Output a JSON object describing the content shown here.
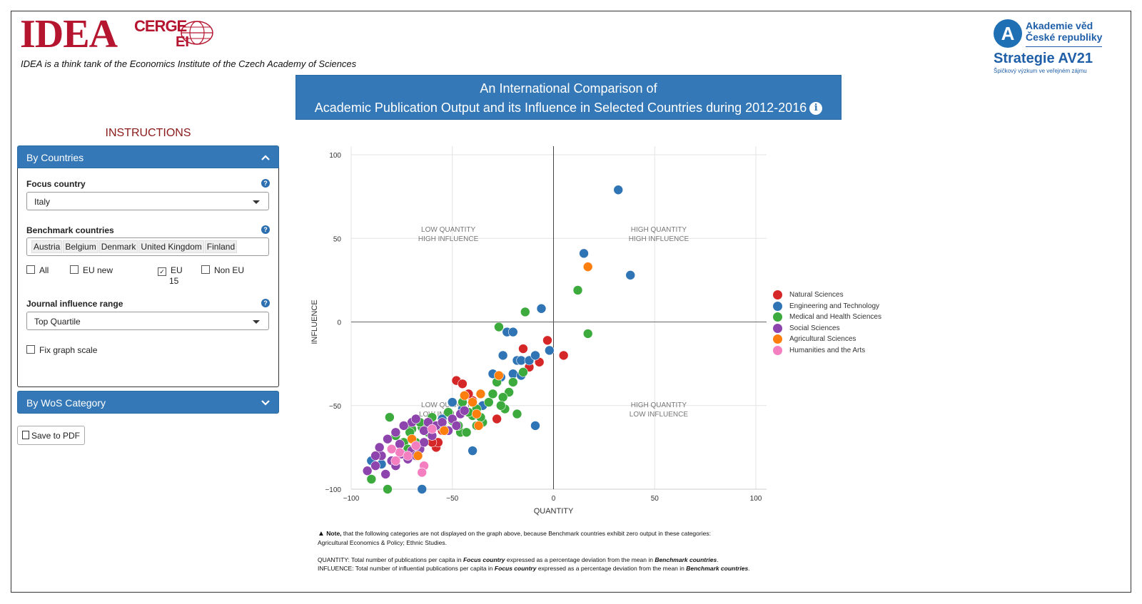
{
  "header": {
    "logo_idea": "IDEA",
    "logo_cerge": "CERGE",
    "logo_ei": "EI",
    "tagline": "IDEA is a think tank of the Economics Institute of the Czech Academy of Sciences",
    "av_line1": "Akademie věd",
    "av_line2": "České republiky",
    "av_strategy": "Strategie AV21",
    "av_sub": "Špičkový výzkum ve veřejném zájmu",
    "title_line1": "An International Comparison of",
    "title_line2": "Academic Publication Output and its Influence in Selected Countries during 2012-2016"
  },
  "sidebar": {
    "instructions_title": "INSTRUCTIONS",
    "panel1_title": "By Countries",
    "focus_label": "Focus country",
    "focus_value": "Italy",
    "benchmark_label": "Benchmark countries",
    "benchmark_chips": [
      "Austria",
      "Belgium",
      "Denmark",
      "United Kingdom",
      "Finland"
    ],
    "checkbox_all": "All",
    "checkbox_eu_new": "EU new",
    "checkbox_eu15_a": "EU",
    "checkbox_eu15_b": "15",
    "checkbox_non_eu": "Non EU",
    "journal_label": "Journal influence range",
    "journal_value": "Top Quartile",
    "fix_scale": "Fix graph scale",
    "panel2_title": "By WoS Category",
    "save_button": "Save to PDF"
  },
  "colors": {
    "natural": "#d62728",
    "engineering": "#2f74b5",
    "medical": "#3caa3c",
    "social": "#8e44ad",
    "agricultural": "#ff7f0e",
    "humanities": "#f47fc0",
    "header_blue": "#3478b7"
  },
  "chart_data": {
    "type": "scatter",
    "xlabel": "QUANTITY",
    "ylabel": "INFLUENCE",
    "xlim": [
      -100,
      100
    ],
    "ylim": [
      -100,
      100
    ],
    "xticks": [
      -100,
      -50,
      0,
      50,
      100
    ],
    "yticks": [
      -100,
      -50,
      0,
      50,
      100
    ],
    "quadrants": {
      "tl1": "LOW QUANTITY",
      "tl2": "HIGH INFLUENCE",
      "tr1": "HIGH QUANTITY",
      "tr2": "HIGH INFLUENCE",
      "bl1": "LOW QUANTITY",
      "bl2": "LOW INFLUENCE",
      "br1": "HIGH QUANTITY",
      "br2": "LOW INFLUENCE"
    },
    "series": [
      {
        "name": "Natural Sciences",
        "color": "#d62728",
        "points": [
          [
            -3,
            -11
          ],
          [
            -15,
            -16
          ],
          [
            5,
            -20
          ],
          [
            -12,
            -27
          ],
          [
            -7,
            -24
          ],
          [
            -48,
            -35
          ],
          [
            -45,
            -37
          ],
          [
            -40,
            -47
          ],
          [
            -28,
            -58
          ],
          [
            -42,
            -43
          ],
          [
            -55,
            -65
          ],
          [
            -58,
            -75
          ],
          [
            -57,
            -72
          ],
          [
            -60,
            -72
          ]
        ]
      },
      {
        "name": "Engineering and Technology",
        "color": "#2f74b5",
        "points": [
          [
            32,
            79
          ],
          [
            15,
            41
          ],
          [
            38,
            28
          ],
          [
            -6,
            8
          ],
          [
            -23,
            -6
          ],
          [
            -20,
            -6
          ],
          [
            -2,
            -17
          ],
          [
            -25,
            -20
          ],
          [
            -18,
            -23
          ],
          [
            -16,
            -23
          ],
          [
            -12,
            -23
          ],
          [
            -9,
            -20
          ],
          [
            -30,
            -31
          ],
          [
            -26,
            -33
          ],
          [
            -20,
            -31
          ],
          [
            -16,
            -32
          ],
          [
            -9,
            -62
          ],
          [
            -40,
            -77
          ],
          [
            -65,
            -100
          ],
          [
            -90,
            -83
          ],
          [
            -85,
            -85
          ],
          [
            -55,
            -58
          ],
          [
            -50,
            -48
          ],
          [
            -45,
            -52
          ],
          [
            -35,
            -50
          ]
        ]
      },
      {
        "name": "Medical and Health Sciences",
        "color": "#3caa3c",
        "points": [
          [
            12,
            19
          ],
          [
            -14,
            6
          ],
          [
            -27,
            -3
          ],
          [
            17,
            -7
          ],
          [
            -90,
            -94
          ],
          [
            -82,
            -100
          ],
          [
            -81,
            -57
          ],
          [
            -70,
            -64
          ],
          [
            -15,
            -30
          ],
          [
            -20,
            -36
          ],
          [
            -22,
            -42
          ],
          [
            -25,
            -45
          ],
          [
            -30,
            -43
          ],
          [
            -28,
            -36
          ],
          [
            -18,
            -55
          ],
          [
            -24,
            -52
          ],
          [
            -26,
            -50
          ],
          [
            -35,
            -60
          ],
          [
            -40,
            -56
          ],
          [
            -46,
            -66
          ],
          [
            -43,
            -66
          ],
          [
            -38,
            -62
          ],
          [
            -36,
            -57
          ],
          [
            -50,
            -59
          ],
          [
            -55,
            -63
          ],
          [
            -60,
            -68
          ],
          [
            -65,
            -63
          ],
          [
            -68,
            -72
          ],
          [
            -71,
            -66
          ],
          [
            -60,
            -57
          ],
          [
            -45,
            -48
          ],
          [
            -32,
            -48
          ],
          [
            -38,
            -52
          ],
          [
            -42,
            -54
          ],
          [
            -47,
            -62
          ],
          [
            -52,
            -54
          ],
          [
            -58,
            -62
          ],
          [
            -62,
            -66
          ],
          [
            -66,
            -60
          ],
          [
            -74,
            -72
          ],
          [
            -78,
            -68
          ],
          [
            -72,
            -76
          ]
        ]
      },
      {
        "name": "Social Sciences",
        "color": "#8e44ad",
        "points": [
          [
            -92,
            -89
          ],
          [
            -88,
            -86
          ],
          [
            -83,
            -91
          ],
          [
            -85,
            -80
          ],
          [
            -80,
            -83
          ],
          [
            -78,
            -86
          ],
          [
            -75,
            -79
          ],
          [
            -72,
            -82
          ],
          [
            -70,
            -77
          ],
          [
            -68,
            -80
          ],
          [
            -66,
            -76
          ],
          [
            -64,
            -72
          ],
          [
            -60,
            -68
          ],
          [
            -58,
            -62
          ],
          [
            -55,
            -60
          ],
          [
            -52,
            -65
          ],
          [
            -50,
            -58
          ],
          [
            -48,
            -62
          ],
          [
            -46,
            -55
          ],
          [
            -44,
            -53
          ],
          [
            -70,
            -60
          ],
          [
            -74,
            -62
          ],
          [
            -78,
            -66
          ],
          [
            -82,
            -70
          ],
          [
            -86,
            -75
          ],
          [
            -88,
            -80
          ],
          [
            -76,
            -73
          ],
          [
            -64,
            -65
          ],
          [
            -62,
            -60
          ],
          [
            -68,
            -58
          ]
        ]
      },
      {
        "name": "Agricultural Sciences",
        "color": "#ff7f0e",
        "points": [
          [
            17,
            33
          ],
          [
            -27,
            -32
          ],
          [
            -36,
            -43
          ],
          [
            -40,
            -48
          ],
          [
            -38,
            -55
          ],
          [
            -37,
            -62
          ],
          [
            -54,
            -65
          ],
          [
            -67,
            -80
          ],
          [
            -70,
            -70
          ],
          [
            -44,
            -44
          ]
        ]
      },
      {
        "name": "Humanities and the Arts",
        "color": "#f47fc0",
        "points": [
          [
            -76,
            -78
          ],
          [
            -78,
            -83
          ],
          [
            -64,
            -86
          ],
          [
            -65,
            -90
          ],
          [
            -60,
            -64
          ],
          [
            -68,
            -74
          ],
          [
            -72,
            -80
          ],
          [
            -80,
            -76
          ]
        ]
      }
    ]
  },
  "notes": {
    "note_prefix": "Note,",
    "note_text": " that the following categories are not displayed on the graph above, because Benchmark countries exhibit zero output in these categories:",
    "note_cats": "Agricultural Economics & Policy; Ethnic Studies.",
    "quantity_a": "QUANTITY: Total number of publications per capita in ",
    "quantity_b": "Focus country",
    "quantity_c": " expressed as a percentage deviation from the mean in ",
    "quantity_d": "Benchmark countries",
    "quantity_e": ".",
    "influence_a": "INFLUENCE: Total number of influential publications per capita in ",
    "influence_b": "Focus country",
    "influence_c": " expressed as a percentage deviation from the mean in ",
    "influence_d": "Benchmark countries",
    "influence_e": "."
  }
}
